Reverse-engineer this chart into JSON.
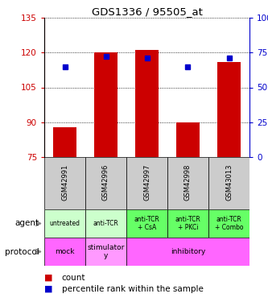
{
  "title": "GDS1336 / 95505_at",
  "samples": [
    "GSM42991",
    "GSM42996",
    "GSM42997",
    "GSM42998",
    "GSM43013"
  ],
  "bar_bottom": [
    75,
    75,
    75,
    75,
    75
  ],
  "bar_top": [
    88,
    120,
    121,
    90,
    116
  ],
  "percentile_rank": [
    65,
    72,
    71,
    65,
    71
  ],
  "left_ylim": [
    75,
    135
  ],
  "left_yticks": [
    75,
    90,
    105,
    120,
    135
  ],
  "right_ylim": [
    0,
    100
  ],
  "right_yticks": [
    0,
    25,
    50,
    75,
    100
  ],
  "right_yticklabels": [
    "0",
    "25",
    "50",
    "75",
    "100%"
  ],
  "bar_color": "#cc0000",
  "dot_color": "#0000cc",
  "agent_labels": [
    "untreated",
    "anti-TCR",
    "anti-TCR\n+ CsA",
    "anti-TCR\n+ PKCi",
    "anti-TCR\n+ Combo"
  ],
  "agent_colors_light": "#ccffcc",
  "agent_colors_dark": "#66ff66",
  "agent_dark": [
    false,
    false,
    true,
    true,
    true
  ],
  "protocol_mock_color": "#ff66ff",
  "protocol_stim_color": "#ff99ff",
  "protocol_inhib_color": "#ff66ff",
  "sample_bg_color": "#cccccc",
  "left_tick_color": "#cc0000",
  "right_tick_color": "#0000cc",
  "legend_count_color": "#cc0000",
  "legend_pct_color": "#0000cc"
}
